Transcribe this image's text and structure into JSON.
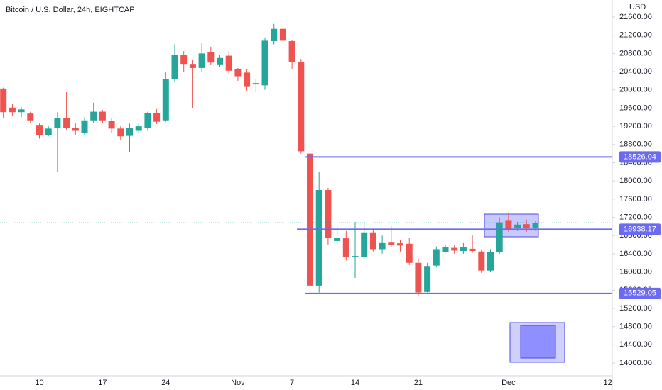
{
  "chart_data": {
    "type": "candlestick",
    "title": "Bitcoin / U.S. Dollar, 24h, EIGHTCAP",
    "y_axis_label": "USD",
    "categories": [
      null,
      null,
      null,
      null,
      null,
      "10",
      null,
      null,
      null,
      null,
      null,
      null,
      "17",
      null,
      null,
      null,
      null,
      null,
      null,
      "24",
      null,
      null,
      null,
      null,
      null,
      null,
      null,
      "Nov",
      null,
      null,
      null,
      null,
      null,
      "7",
      null,
      null,
      null,
      null,
      null,
      null,
      "14",
      null,
      null,
      null,
      null,
      null,
      null,
      "21",
      null,
      null,
      null,
      null,
      null,
      null,
      null,
      null,
      null,
      "Dec",
      null,
      null,
      null,
      null,
      null,
      null,
      null,
      null,
      null,
      null,
      "12"
    ],
    "open": [
      null,
      20030,
      19610,
      19510,
      19480,
      19230,
      19010,
      19170,
      19380,
      19160,
      19050,
      19330,
      19520,
      19320,
      19150,
      18990,
      19100,
      19170,
      19490,
      19330,
      20230,
      20770,
      20570,
      20480,
      20830,
      20560,
      20750,
      20450,
      20380,
      20150,
      20100,
      21070,
      21340,
      21070,
      20620,
      18600,
      15700,
      17800,
      16680,
      16740,
      16330,
      16330,
      16870,
      16500,
      16660,
      16630,
      16620,
      16200,
      15560,
      16140,
      16440,
      16530,
      16460,
      16510,
      16450,
      16030,
      16440,
      17140,
      16960,
      17050,
      16970,
      null,
      null,
      null,
      null,
      null,
      null,
      null,
      null
    ],
    "high": [
      null,
      20050,
      19700,
      19620,
      19520,
      19260,
      19200,
      19510,
      19950,
      19260,
      19400,
      19720,
      19560,
      19380,
      19200,
      19260,
      19280,
      19520,
      19580,
      20400,
      21000,
      20850,
      20650,
      21020,
      20950,
      20760,
      20850,
      20480,
      20450,
      20250,
      21150,
      21450,
      21400,
      21100,
      20680,
      18700,
      18200,
      17850,
      17000,
      16900,
      17100,
      17100,
      16950,
      16800,
      17000,
      16700,
      16750,
      16300,
      16200,
      16560,
      16600,
      16600,
      16650,
      16800,
      16500,
      16500,
      17200,
      17300,
      17100,
      17150,
      17120,
      null,
      null,
      null,
      null,
      null,
      null,
      null,
      null
    ],
    "low": [
      null,
      19380,
      19430,
      19400,
      19280,
      18930,
      18980,
      18200,
      19120,
      19000,
      19000,
      19280,
      19280,
      19050,
      18900,
      18640,
      19050,
      19100,
      19250,
      19300,
      20180,
      20400,
      19600,
      20400,
      20550,
      20500,
      20350,
      20200,
      19980,
      19950,
      20000,
      21000,
      21050,
      20450,
      18600,
      15600,
      15550,
      16600,
      16600,
      16250,
      15870,
      16280,
      16450,
      16400,
      16550,
      16450,
      16150,
      15480,
      15550,
      16100,
      16420,
      16400,
      16400,
      16420,
      15980,
      16000,
      16400,
      16880,
      16900,
      16880,
      16900,
      null,
      null,
      null,
      null,
      null,
      null,
      null,
      null
    ],
    "close": [
      null,
      19510,
      19510,
      19570,
      19330,
      19010,
      19150,
      19380,
      19170,
      19100,
      19330,
      19520,
      19330,
      19150,
      18980,
      19160,
      19200,
      19490,
      19300,
      20230,
      20770,
      20570,
      20480,
      20800,
      20600,
      20700,
      20420,
      20300,
      20080,
      20120,
      21080,
      21340,
      21080,
      20620,
      18650,
      15700,
      17800,
      16750,
      16750,
      16320,
      16350,
      16870,
      16500,
      16650,
      16600,
      16580,
      16200,
      15550,
      16130,
      16500,
      16540,
      16470,
      16550,
      16460,
      16030,
      16440,
      17090,
      16930,
      17040,
      16970,
      17080,
      null,
      null,
      null,
      null,
      null,
      null,
      null,
      null
    ],
    "up_color": "#26a69a",
    "down_color": "#ef5350",
    "levels": [
      18526.04,
      16938.17,
      15529.05
    ],
    "level_color": "#6a6af2",
    "ylim": [
      13720,
      21974
    ],
    "yticks": [
      {
        "value": 14000,
        "label": "14000.00"
      },
      {
        "value": 14400,
        "label": "14400.00"
      },
      {
        "value": 14800,
        "label": "14800.00"
      },
      {
        "value": 15200,
        "label": "15200.00"
      },
      {
        "value": 15600,
        "label": "15600.00"
      },
      {
        "value": 16000,
        "label": "16000.00"
      },
      {
        "value": 16400,
        "label": "16400.00"
      },
      {
        "value": 16800,
        "label": "16800.00"
      },
      {
        "value": 17200,
        "label": "17200.00"
      },
      {
        "value": 17600,
        "label": "17600.00"
      },
      {
        "value": 18000,
        "label": "18000.00"
      },
      {
        "value": 18400,
        "label": "18400.00"
      },
      {
        "value": 18800,
        "label": "18800.00"
      },
      {
        "value": 19200,
        "label": "19200.00"
      },
      {
        "value": 19600,
        "label": "19600.00"
      },
      {
        "value": 20000,
        "label": "20000.00"
      },
      {
        "value": 20400,
        "label": "20400.00"
      },
      {
        "value": 20800,
        "label": "20800.00"
      },
      {
        "value": 21200,
        "label": "21200.00"
      },
      {
        "value": 21600,
        "label": "21600.00"
      }
    ],
    "grid": false
  }
}
